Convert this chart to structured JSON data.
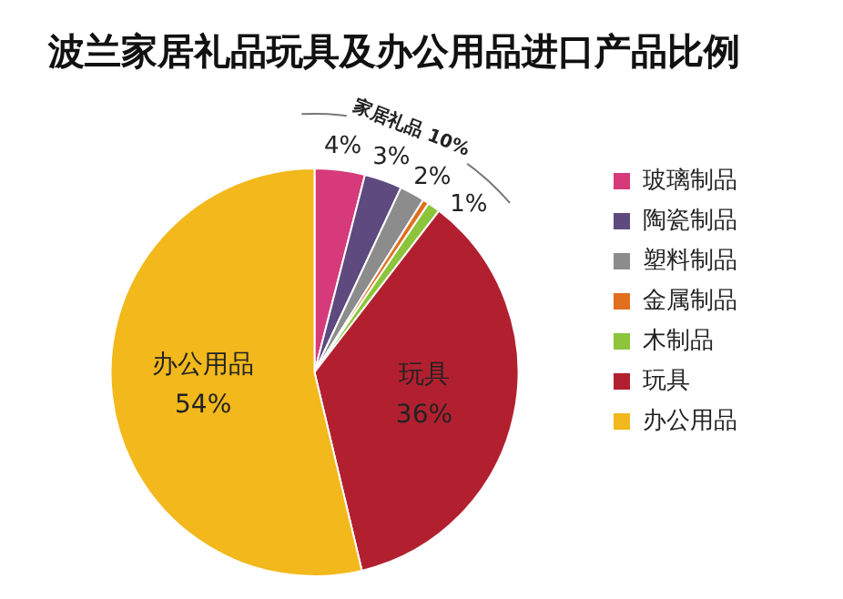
{
  "chart_data": {
    "type": "pie",
    "title": "波兰家居礼品玩具及办公用品进口产品比例",
    "categories": [
      "玻璃制品",
      "陶瓷制品",
      "塑料制品",
      "金属制品",
      "木制品",
      "玩具",
      "办公用品"
    ],
    "values": [
      4,
      3,
      2,
      0.5,
      1,
      36,
      54
    ],
    "value_labels": [
      "4%",
      "3%",
      "2%",
      null,
      "1%",
      "36%",
      "54%"
    ],
    "colors": [
      "#d63a7a",
      "#5e4a7e",
      "#8c8c8c",
      "#e07020",
      "#8cc43c",
      "#b22030",
      "#f2b81c"
    ],
    "annotations": [
      "家居礼品 10%"
    ],
    "legend": "right"
  }
}
